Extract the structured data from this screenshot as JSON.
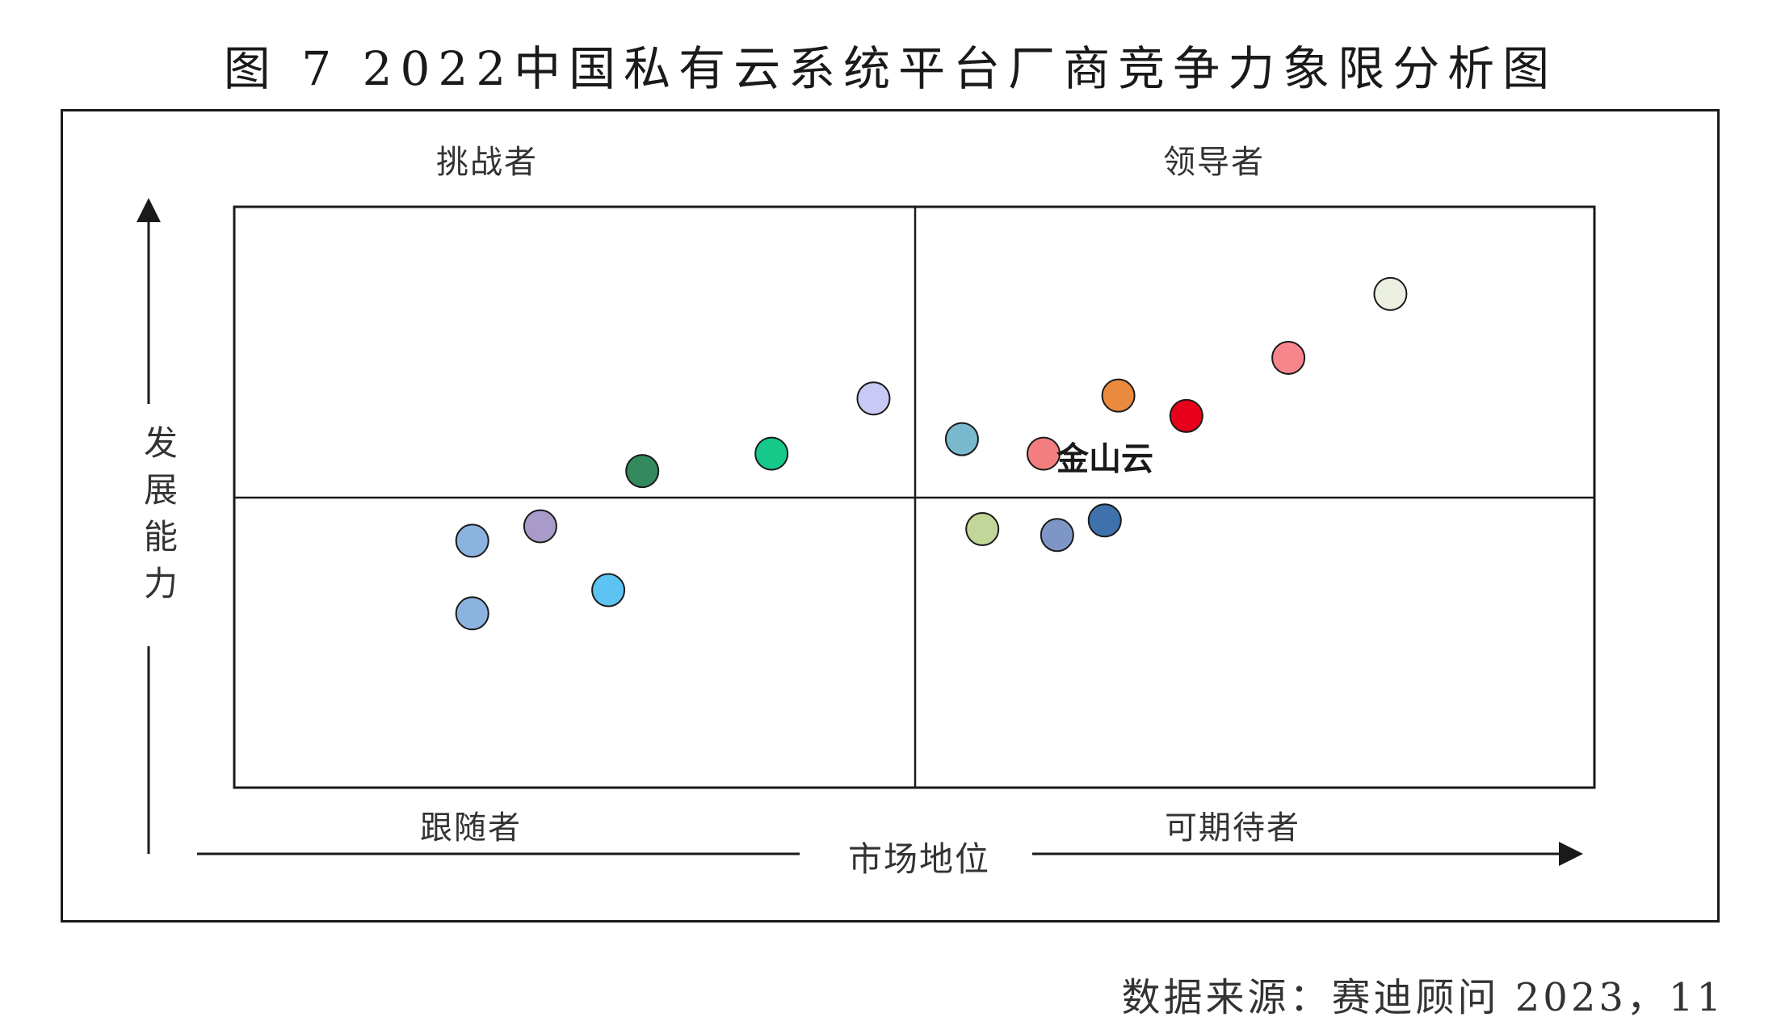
{
  "title": "图 7   2022中国私有云系统平台厂商竞争力象限分析图",
  "source": "数据来源：赛迪顾问    2023，11",
  "chart_data": {
    "type": "scatter",
    "title": "图 7   2022中国私有云系统平台厂商竞争力象限分析图",
    "xlabel": "市场地位",
    "ylabel": "发展能力",
    "xlim": [
      0,
      100
    ],
    "ylim": [
      0,
      100
    ],
    "grid": false,
    "quadrants": {
      "top_left": "挑战者",
      "top_right": "领导者",
      "bottom_left": "跟随者",
      "bottom_right": "可期待者"
    },
    "points": [
      {
        "x": 85,
        "y": 85,
        "color": "#ecf0e0",
        "label": ""
      },
      {
        "x": 77.5,
        "y": 74,
        "color": "#f7858c",
        "label": ""
      },
      {
        "x": 65,
        "y": 67.5,
        "color": "#ea8a3e",
        "label": ""
      },
      {
        "x": 70,
        "y": 64,
        "color": "#e8001a",
        "label": ""
      },
      {
        "x": 53.5,
        "y": 60,
        "color": "#7ab9cd",
        "label": ""
      },
      {
        "x": 59.5,
        "y": 57.5,
        "color": "#f47d80",
        "label": "金山云"
      },
      {
        "x": 47,
        "y": 67,
        "color": "#c9c9f5",
        "label": ""
      },
      {
        "x": 39.5,
        "y": 57.5,
        "color": "#14c98a",
        "label": ""
      },
      {
        "x": 30,
        "y": 54.5,
        "color": "#338a5c",
        "label": ""
      },
      {
        "x": 64,
        "y": 46,
        "color": "#3f72ad",
        "label": ""
      },
      {
        "x": 60.5,
        "y": 43.5,
        "color": "#7d96c6",
        "label": ""
      },
      {
        "x": 55,
        "y": 44.5,
        "color": "#c3d69a",
        "label": ""
      },
      {
        "x": 22.5,
        "y": 45,
        "color": "#a99bc9",
        "label": ""
      },
      {
        "x": 17.5,
        "y": 42.5,
        "color": "#8bb3e0",
        "label": ""
      },
      {
        "x": 27.5,
        "y": 34,
        "color": "#5cc3f2",
        "label": ""
      },
      {
        "x": 17.5,
        "y": 30,
        "color": "#8bb3e0",
        "label": ""
      }
    ]
  }
}
